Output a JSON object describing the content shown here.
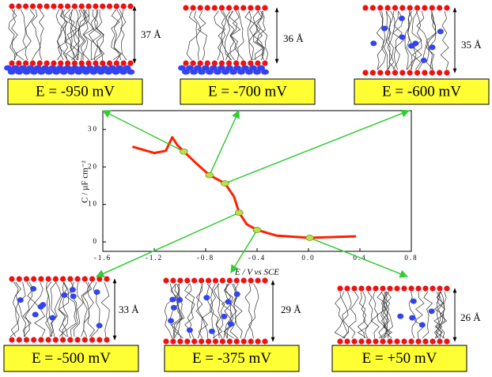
{
  "chart_data": {
    "type": "line",
    "x_label": "E / V vs SCE",
    "y_label": "C / µF cm⁻²",
    "xlim": [
      -1.6,
      0.8
    ],
    "ylim": [
      -2.5,
      35
    ],
    "xticks": [
      -1.6,
      -1.2,
      -0.8,
      -0.4,
      {
        "value": 0,
        "label": "0.0"
      },
      0.4,
      0.8
    ],
    "yticks": [
      0,
      10,
      20,
      30
    ],
    "series": [
      {
        "color": "#ff2000",
        "x": [
          -1.37,
          -1.2,
          -1.11,
          -1.06,
          -1.02,
          -0.97,
          -0.86,
          -0.77,
          -0.65,
          -0.58,
          -0.54,
          -0.48,
          -0.4,
          -0.25,
          0.01,
          0.37
        ],
        "values": [
          25.4,
          23.7,
          24.3,
          27.9,
          25.8,
          24.1,
          20.5,
          17.8,
          15.6,
          12.1,
          7.8,
          4.7,
          3.2,
          1.7,
          1.1,
          1.5
        ]
      }
    ],
    "markers": {
      "color": "#b8e04a",
      "x": [
        -0.97,
        -0.77,
        -0.65,
        -0.54,
        -0.4,
        0.01
      ],
      "values": [
        24.1,
        17.8,
        15.6,
        7.8,
        3.2,
        1.1
      ]
    },
    "panels": [
      {
        "label": "E = -950 mV",
        "thickness": "37 Å"
      },
      {
        "label": "E = -700 mV",
        "thickness": "36 Å"
      },
      {
        "label": "E = -600 mV",
        "thickness": "35 Å"
      },
      {
        "label": "E = -500 mV",
        "thickness": "33 Å"
      },
      {
        "label": "E = -375 mV",
        "thickness": "29 Å"
      },
      {
        "label": "E = +50 mV",
        "thickness": "26 Å"
      }
    ]
  }
}
